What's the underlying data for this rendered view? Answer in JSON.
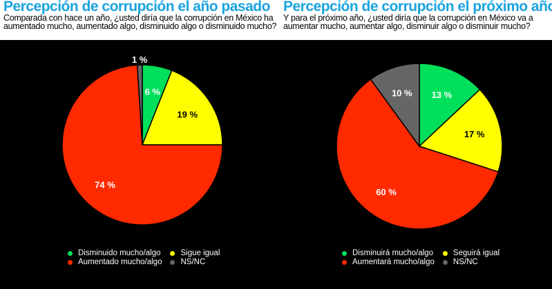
{
  "chart_data": [
    {
      "type": "pie",
      "title": "Percepción de corrupción el año pasado",
      "subtitle": "Comparada con hace un año, ¿usted diría que la corrupción en México ha aumentado mucho, aumentado algo, disminuido algo o disminuido mucho?",
      "subtitle_lines": [
        "Comparada con hace un año, ¿usted diría que la corrupción en México ha",
        "aumentado mucho, aumentado algo, disminuido algo o disminuido mucho?"
      ],
      "slices": [
        {
          "name": "Disminuido mucho/algo",
          "value": 6,
          "label": "6 %",
          "color": "#00e05a"
        },
        {
          "name": "Sigue igual",
          "value": 19,
          "label": "19 %",
          "color": "#ffff00"
        },
        {
          "name": "Aumentado mucho/algo",
          "value": 74,
          "label": "74 %",
          "color": "#ff2a00"
        },
        {
          "name": "NS/NC",
          "value": 1,
          "label": "1 %",
          "color": "#666666"
        }
      ],
      "legend_position": "bottom"
    },
    {
      "type": "pie",
      "title": "Percepción de corrupción el próximo año",
      "subtitle": "Y para el próximo año, ¿usted diría que la corrupción en México va a aumentar mucho, aumentar algo, disminuir algo o disminuir mucho?",
      "subtitle_lines": [
        "Y para el próximo año, ¿usted diría que la corrupción en México va a",
        "aumentar mucho, aumentar algo, disminuir algo o disminuir mucho?"
      ],
      "slices": [
        {
          "name": "Disminuirá mucho/algo",
          "value": 13,
          "label": "13 %",
          "color": "#00e05a"
        },
        {
          "name": "Seguirá igual",
          "value": 17,
          "label": "17 %",
          "color": "#ffff00"
        },
        {
          "name": "Aumentará mucho/algo",
          "value": 60,
          "label": "60 %",
          "color": "#ff2a00"
        },
        {
          "name": "NS/NC",
          "value": 10,
          "label": "10 %",
          "color": "#666666"
        }
      ],
      "legend_position": "bottom"
    }
  ]
}
